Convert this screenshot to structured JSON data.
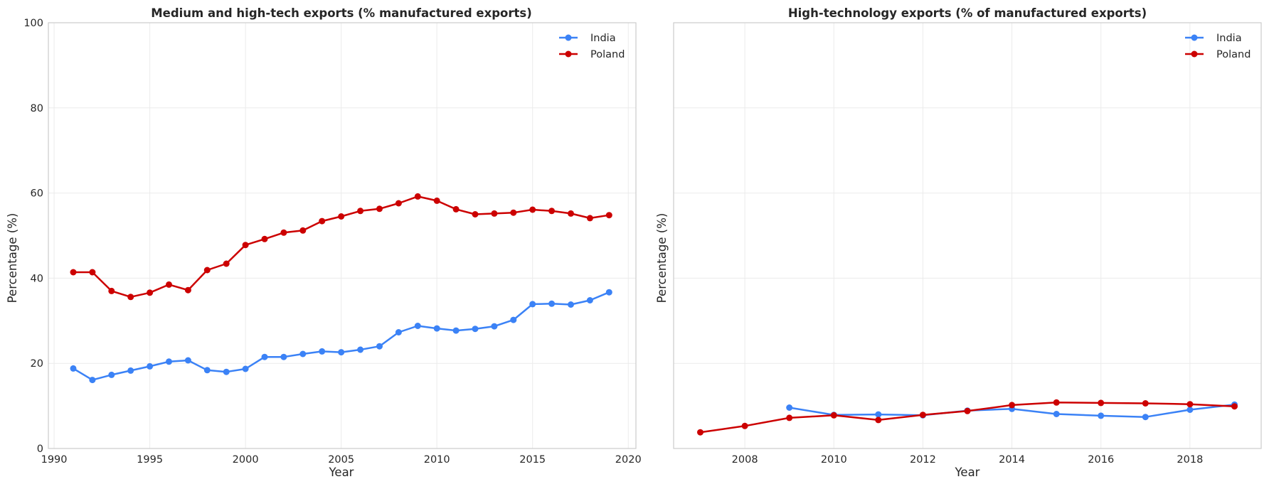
{
  "chart_data": [
    {
      "type": "line",
      "title": "Medium and high-tech exports (% manufactured exports)",
      "xlabel": "Year",
      "ylabel": "Percentage (%)",
      "xlim": [
        1989.7,
        2020.4
      ],
      "ylim": [
        0,
        100
      ],
      "xticks": [
        1990,
        1995,
        2000,
        2005,
        2010,
        2015,
        2020
      ],
      "yticks": [
        0,
        20,
        40,
        60,
        80,
        100
      ],
      "grid": true,
      "legend": "top-right",
      "series": [
        {
          "name": "India",
          "color": "#3b82f6",
          "x": [
            1991,
            1992,
            1993,
            1994,
            1995,
            1996,
            1997,
            1998,
            1999,
            2000,
            2001,
            2002,
            2003,
            2004,
            2005,
            2006,
            2007,
            2008,
            2009,
            2010,
            2011,
            2012,
            2013,
            2014,
            2015,
            2016,
            2017,
            2018,
            2019
          ],
          "y": [
            18.8,
            16.1,
            17.3,
            18.3,
            19.3,
            20.4,
            20.7,
            18.4,
            18.0,
            18.7,
            21.5,
            21.5,
            22.2,
            22.8,
            22.6,
            23.2,
            24.0,
            27.3,
            28.8,
            28.2,
            27.7,
            28.1,
            28.7,
            30.2,
            33.9,
            34.0,
            33.8,
            34.8,
            36.7
          ]
        },
        {
          "name": "Poland",
          "color": "#cc0000",
          "x": [
            1991,
            1992,
            1993,
            1994,
            1995,
            1996,
            1997,
            1998,
            1999,
            2000,
            2001,
            2002,
            2003,
            2004,
            2005,
            2006,
            2007,
            2008,
            2009,
            2010,
            2011,
            2012,
            2013,
            2014,
            2015,
            2016,
            2017,
            2018,
            2019
          ],
          "y": [
            41.4,
            41.4,
            37.0,
            35.6,
            36.6,
            38.5,
            37.2,
            41.9,
            43.4,
            47.8,
            49.2,
            50.7,
            51.2,
            53.4,
            54.5,
            55.8,
            56.3,
            57.6,
            59.2,
            58.2,
            56.2,
            55.0,
            55.2,
            55.4,
            56.1,
            55.8,
            55.2,
            54.1,
            54.8
          ]
        }
      ]
    },
    {
      "type": "line",
      "title": "High-technology exports (% of manufactured exports)",
      "xlabel": "Year",
      "ylabel": "Percentage (%)",
      "xlim": [
        2006.4,
        2019.6
      ],
      "ylim": [
        0,
        100
      ],
      "xticks": [
        2008,
        2010,
        2012,
        2014,
        2016,
        2018
      ],
      "yticks": [
        0,
        20,
        40,
        60,
        80,
        100
      ],
      "grid": true,
      "legend": "top-right",
      "series": [
        {
          "name": "India",
          "color": "#3b82f6",
          "x": [
            2009,
            2010,
            2011,
            2012,
            2013,
            2014,
            2015,
            2016,
            2017,
            2018,
            2019
          ],
          "y": [
            9.6,
            7.9,
            8.0,
            7.8,
            8.9,
            9.3,
            8.1,
            7.7,
            7.4,
            9.1,
            10.3
          ]
        },
        {
          "name": "Poland",
          "color": "#cc0000",
          "x": [
            2007,
            2008,
            2009,
            2010,
            2011,
            2012,
            2013,
            2014,
            2015,
            2016,
            2017,
            2018,
            2019
          ],
          "y": [
            3.8,
            5.3,
            7.2,
            7.8,
            6.7,
            7.9,
            8.8,
            10.2,
            10.8,
            10.7,
            10.6,
            10.4,
            9.9
          ]
        }
      ]
    }
  ]
}
